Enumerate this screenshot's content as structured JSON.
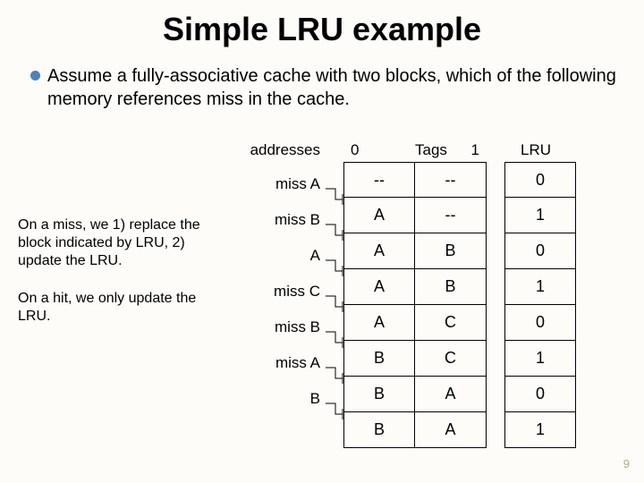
{
  "title": "Simple LRU example",
  "bullet": "Assume a fully-associative cache with two blocks, which of the following memory references miss in the cache.",
  "bullet_color": "#4f81bd",
  "left": {
    "p1": "On a miss, we 1) replace the block indicated by LRU, 2) update the LRU.",
    "p2": "On a hit, we only update the LRU."
  },
  "addresses_label": "addresses",
  "addr_rows": [
    {
      "miss": "miss",
      "addr": "A"
    },
    {
      "miss": "miss",
      "addr": "B"
    },
    {
      "miss": "",
      "addr": "A"
    },
    {
      "miss": "miss",
      "addr": "C"
    },
    {
      "miss": "miss",
      "addr": "B"
    },
    {
      "miss": "miss",
      "addr": "A"
    },
    {
      "miss": "",
      "addr": "B"
    }
  ],
  "table_head": {
    "c0": "0",
    "mid": "Tags",
    "c1": "1",
    "lru": "LRU"
  },
  "table_rows": [
    {
      "t0": "--",
      "t1": "--",
      "lru": "0"
    },
    {
      "t0": "A",
      "t1": "--",
      "lru": "1"
    },
    {
      "t0": "A",
      "t1": "B",
      "lru": "0"
    },
    {
      "t0": "A",
      "t1": "B",
      "lru": "1"
    },
    {
      "t0": "A",
      "t1": "C",
      "lru": "0"
    },
    {
      "t0": "B",
      "t1": "C",
      "lru": "1"
    },
    {
      "t0": "B",
      "t1": "A",
      "lru": "0"
    },
    {
      "t0": "B",
      "t1": "A",
      "lru": "1"
    }
  ],
  "page_number": "9",
  "colors": {
    "background": "#fdfcf8",
    "text": "#000000",
    "border": "#000000",
    "pagenum": "#b9aa86"
  }
}
